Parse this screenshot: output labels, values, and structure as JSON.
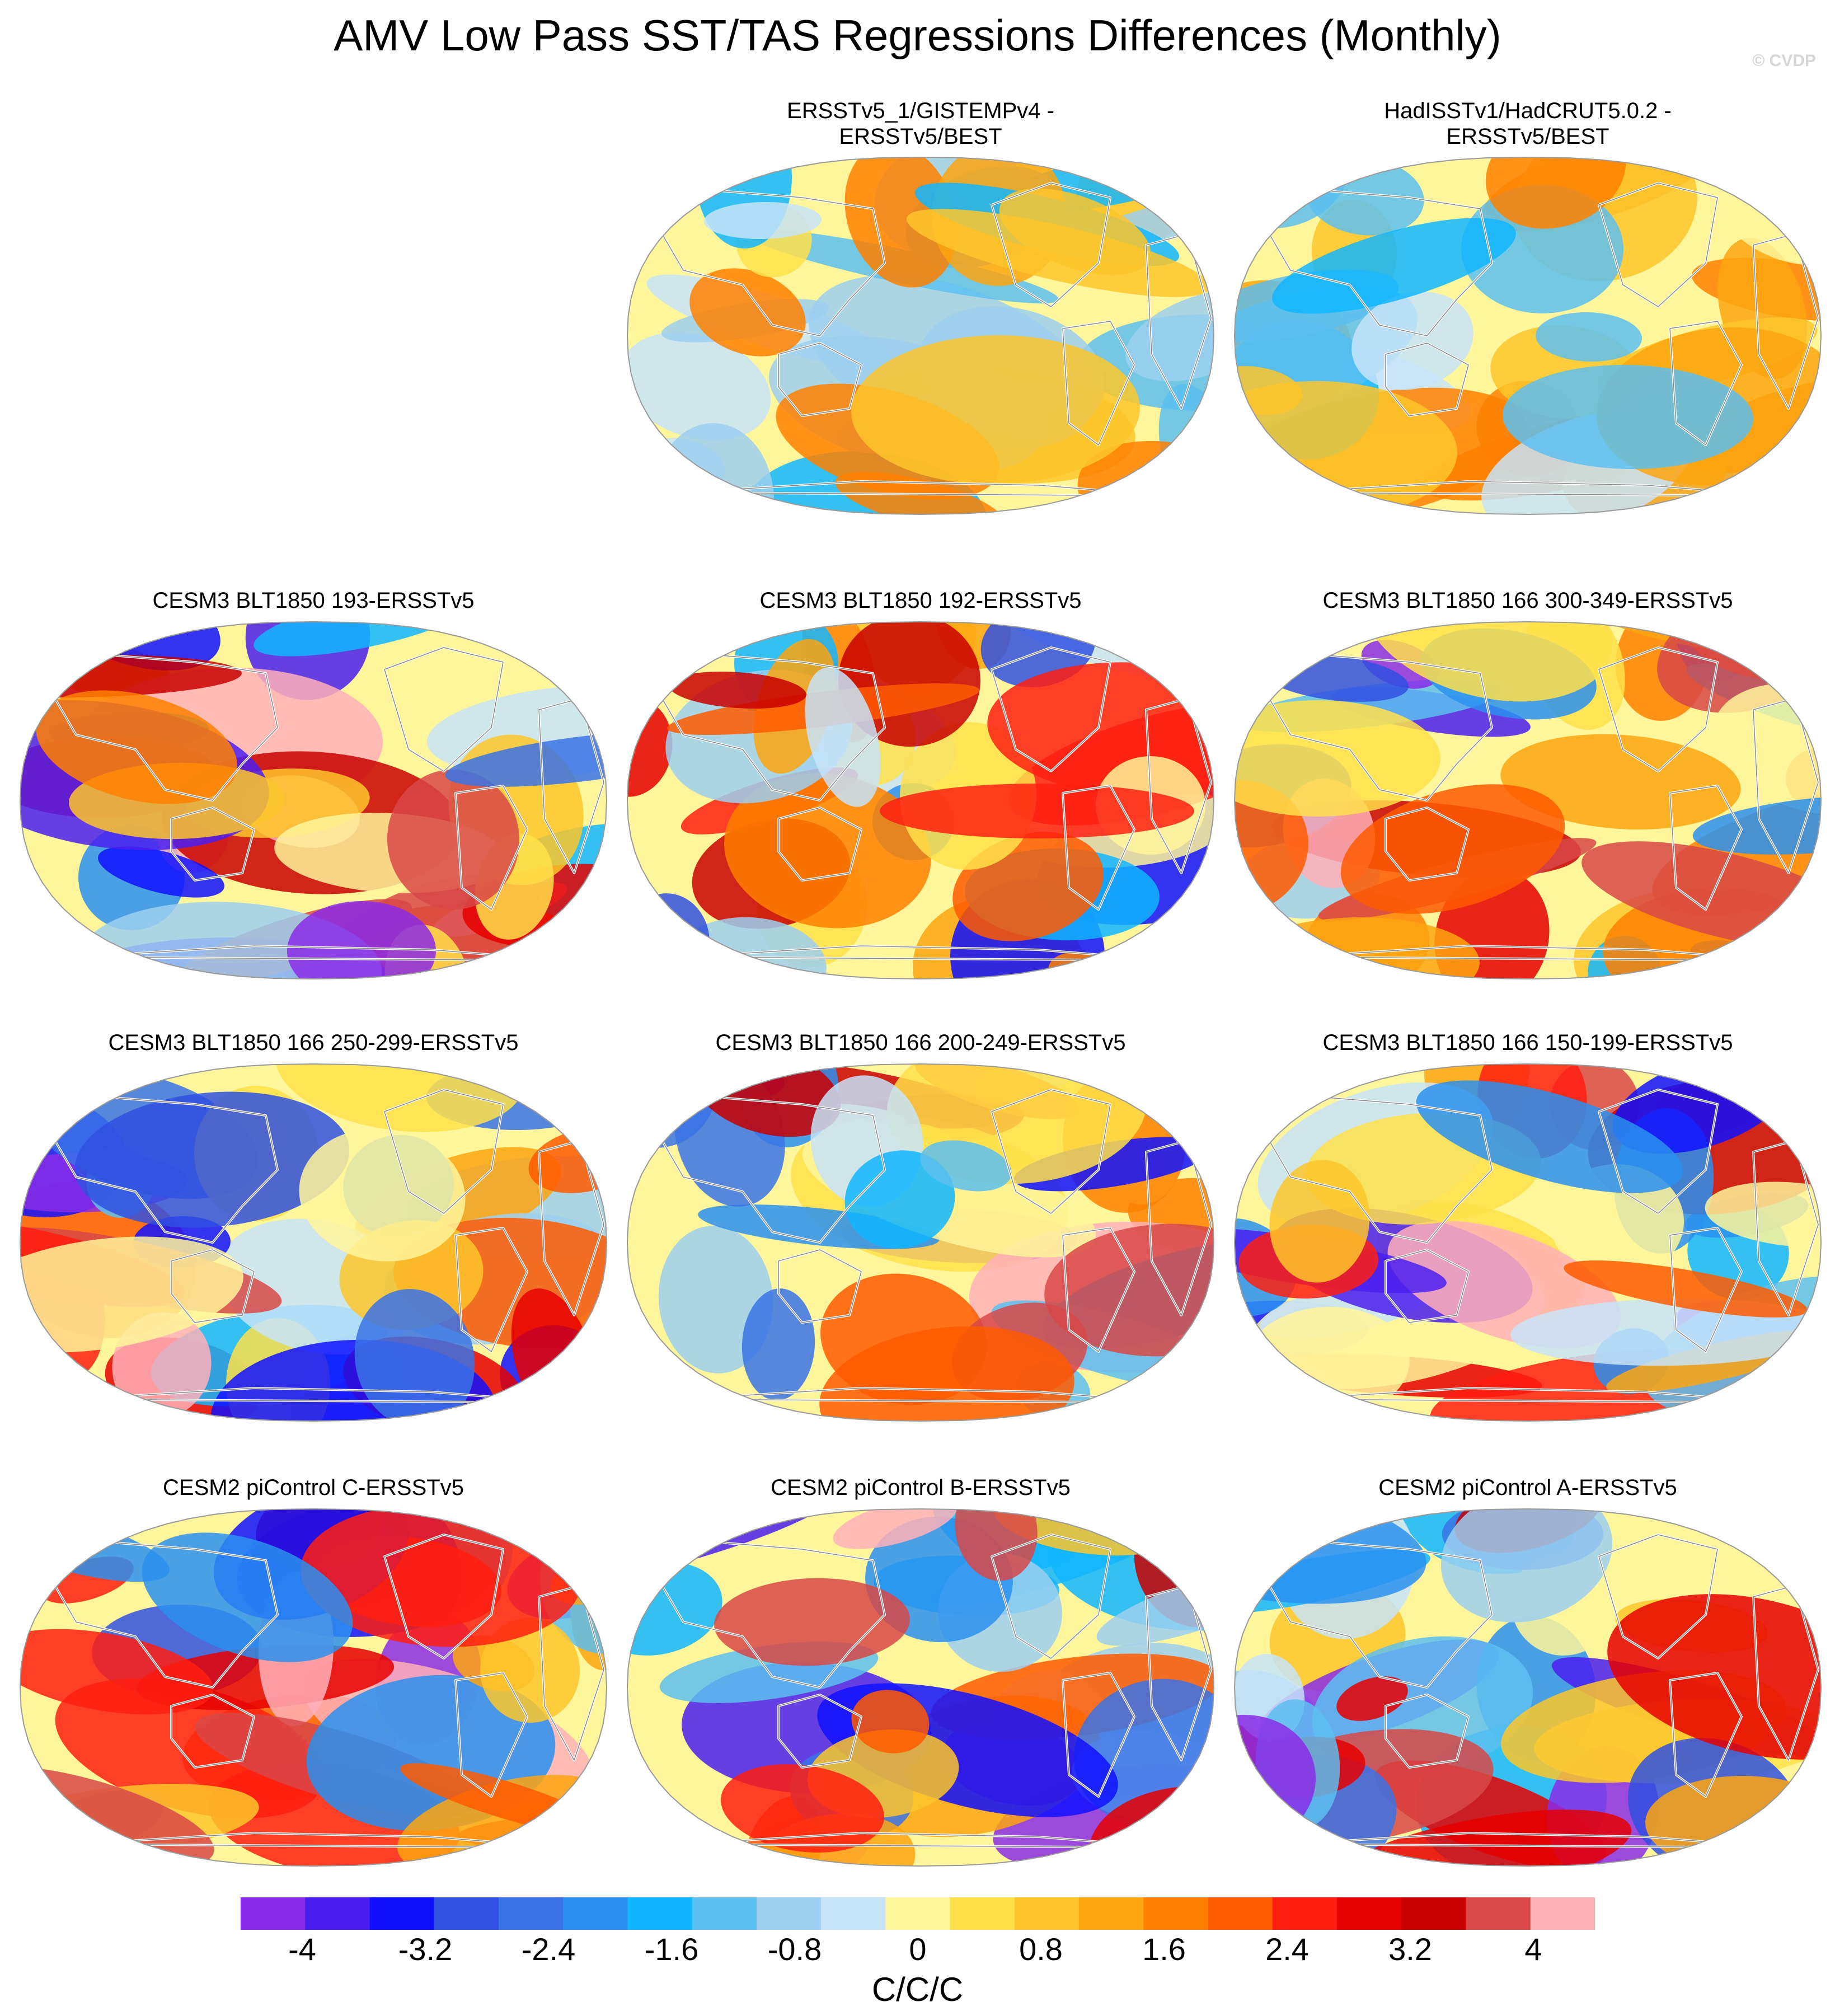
{
  "title": "AMV Low Pass SST/TAS Regressions Differences (Monthly)",
  "watermark": "© CVDP",
  "chart_data": {
    "type": "heatmap",
    "projection": "Robinson (global, centered on Pacific)",
    "panels": [
      {
        "title": "ERSSTv5_1/GISTEMPv4 -\nERSSTv5/BEST",
        "row": 0,
        "col": 1
      },
      {
        "title": "HadISSTv1/HadCRUT5.0.2 -\nERSSTv5/BEST",
        "row": 0,
        "col": 2
      },
      {
        "title": "CESM3 BLT1850 193-ERSSTv5",
        "row": 1,
        "col": 0
      },
      {
        "title": "CESM3 BLT1850 192-ERSSTv5",
        "row": 1,
        "col": 1
      },
      {
        "title": "CESM3 BLT1850 166 300-349-ERSSTv5",
        "row": 1,
        "col": 2
      },
      {
        "title": "CESM3 BLT1850 166 250-299-ERSSTv5",
        "row": 2,
        "col": 0
      },
      {
        "title": "CESM3 BLT1850 166 200-249-ERSSTv5",
        "row": 2,
        "col": 1
      },
      {
        "title": "CESM3 BLT1850 166 150-199-ERSSTv5",
        "row": 2,
        "col": 2
      },
      {
        "title": "CESM2 piControl C-ERSSTv5",
        "row": 3,
        "col": 0
      },
      {
        "title": "CESM2 piControl B-ERSSTv5",
        "row": 3,
        "col": 1
      },
      {
        "title": "CESM2 piControl A-ERSSTv5",
        "row": 3,
        "col": 2
      }
    ],
    "colorbar": {
      "label": "C/C/C",
      "range": [
        -4.4,
        4.4
      ],
      "step": 0.4,
      "tick_labels": [
        "-4",
        "-3.2",
        "-2.4",
        "-1.6",
        "-0.8",
        "0",
        "0.8",
        "1.6",
        "2.4",
        "3.2",
        "4"
      ],
      "colors": [
        "#8a2be8",
        "#4b1ef0",
        "#1010ff",
        "#3050e0",
        "#3a73e6",
        "#2a90f0",
        "#10b6ff",
        "#5cc0f0",
        "#9ccff0",
        "#c7e3f8",
        "#fff59a",
        "#ffe04a",
        "#fdc52a",
        "#fda50f",
        "#ff8000",
        "#ff5a00",
        "#ff1e10",
        "#e60000",
        "#c80000",
        "#d84848",
        "#ffb0b8"
      ]
    }
  }
}
